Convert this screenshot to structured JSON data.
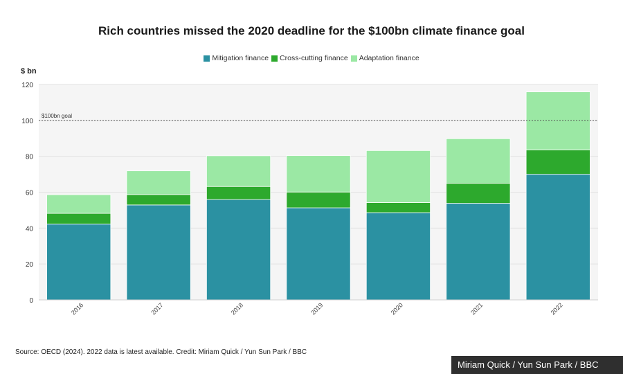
{
  "title": "Rich countries missed the 2020 deadline for the $100bn climate finance goal",
  "legend": [
    {
      "label": "Mitigation finance",
      "color": "#2b91a2"
    },
    {
      "label": "Cross-cutting finance",
      "color": "#2da92d"
    },
    {
      "label": "Adaptation finance",
      "color": "#9be8a4"
    }
  ],
  "ylabel": "$ bn",
  "source": "Source: OECD (2024). 2022 data is latest available. Credit: Miriam Quick / Yun Sun Park / BBC",
  "credit_badge": "Miriam Quick / Yun Sun Park / BBC",
  "chart_data": {
    "type": "bar",
    "stacked": true,
    "title": "Rich countries missed the 2020 deadline for the $100bn climate finance goal",
    "xlabel": "",
    "ylabel": "$ bn",
    "ylim": [
      0,
      120
    ],
    "yticks": [
      0,
      20,
      40,
      60,
      80,
      100,
      120
    ],
    "categories": [
      "2016",
      "2017",
      "2018",
      "2019",
      "2020",
      "2021",
      "2022"
    ],
    "series": [
      {
        "name": "Mitigation finance",
        "color": "#2b91a2",
        "values": [
          42.3,
          52.9,
          55.9,
          51.3,
          48.6,
          53.8,
          70.0
        ]
      },
      {
        "name": "Cross-cutting finance",
        "color": "#2da92d",
        "values": [
          5.9,
          5.8,
          7.3,
          8.8,
          5.6,
          11.2,
          13.5
        ]
      },
      {
        "name": "Adaptation finance",
        "color": "#9be8a4",
        "values": [
          10.4,
          13.2,
          17.1,
          20.3,
          29.0,
          24.8,
          32.4
        ]
      }
    ],
    "reference_line": {
      "value": 100,
      "label": "$100bn goal"
    }
  }
}
